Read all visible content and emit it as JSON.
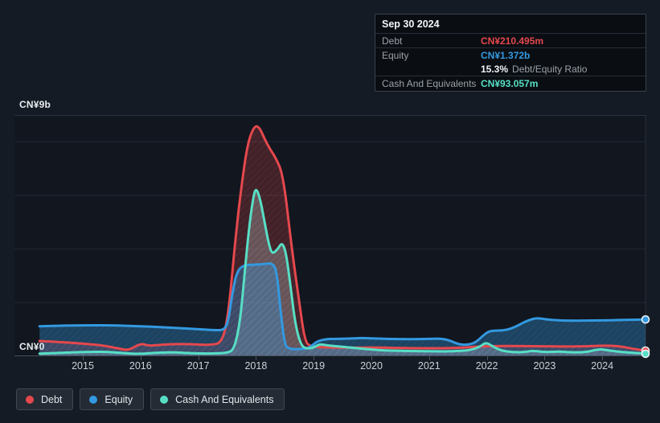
{
  "tooltip": {
    "date": "Sep 30 2024",
    "debt_label": "Debt",
    "debt_value": "CN¥210.495m",
    "equity_label": "Equity",
    "equity_value": "CN¥1.372b",
    "ratio_value": "15.3%",
    "ratio_label": "Debt/Equity Ratio",
    "cash_label": "Cash And Equivalents",
    "cash_value": "CN¥93.057m"
  },
  "axis": {
    "y_top_label": "CN¥9b",
    "y_bottom_label": "CN¥0"
  },
  "legend": {
    "items": [
      {
        "label": "Debt",
        "color": "#e5484d"
      },
      {
        "label": "Equity",
        "color": "#3399e0"
      },
      {
        "label": "Cash And Equivalents",
        "color": "#57dfc5"
      }
    ]
  },
  "colors": {
    "debt": "#e5484d",
    "equity": "#3399e0",
    "cash": "#57dfc5",
    "page_bg": "#151b24",
    "plot_bg": "#11161f",
    "gridline": "#202836",
    "plot_top_border": "#2a3240",
    "baseline": "#46505b",
    "marker_stroke": "#edf0f2"
  },
  "chart_data": {
    "type": "area",
    "unit": "CN¥ billions",
    "ylim": [
      0,
      9
    ],
    "x_start": 2014.25,
    "x_end": 2024.75,
    "x_ticks": [
      2015,
      2016,
      2017,
      2018,
      2019,
      2020,
      2021,
      2022,
      2023,
      2024
    ],
    "gridline_values": [
      2,
      4,
      6,
      8
    ],
    "grid": true,
    "legend_position": "bottom-left",
    "stroke_order": [
      0,
      2,
      1
    ],
    "series": [
      {
        "name": "Debt",
        "color": "#e5484d",
        "fill": "rgba(229,72,77,0.24)",
        "points": [
          [
            2014.25,
            0.57
          ],
          [
            2014.6,
            0.53
          ],
          [
            2015.0,
            0.47
          ],
          [
            2015.3,
            0.42
          ],
          [
            2015.6,
            0.3
          ],
          [
            2015.8,
            0.21
          ],
          [
            2016.0,
            0.49
          ],
          [
            2016.15,
            0.38
          ],
          [
            2016.4,
            0.44
          ],
          [
            2016.7,
            0.46
          ],
          [
            2017.0,
            0.44
          ],
          [
            2017.2,
            0.42
          ],
          [
            2017.42,
            0.5
          ],
          [
            2017.53,
            1.7
          ],
          [
            2017.64,
            4.3
          ],
          [
            2017.74,
            6.2
          ],
          [
            2017.85,
            7.9
          ],
          [
            2017.97,
            8.6
          ],
          [
            2018.06,
            8.55
          ],
          [
            2018.15,
            8.1
          ],
          [
            2018.25,
            7.7
          ],
          [
            2018.33,
            7.45
          ],
          [
            2018.47,
            6.8
          ],
          [
            2018.61,
            4.2
          ],
          [
            2018.75,
            2.0
          ],
          [
            2018.85,
            0.54
          ],
          [
            2018.95,
            0.36
          ],
          [
            2019.2,
            0.33
          ],
          [
            2019.6,
            0.32
          ],
          [
            2020.0,
            0.33
          ],
          [
            2020.4,
            0.31
          ],
          [
            2020.8,
            0.3
          ],
          [
            2021.2,
            0.3
          ],
          [
            2021.6,
            0.32
          ],
          [
            2021.9,
            0.37
          ],
          [
            2022.2,
            0.38
          ],
          [
            2022.6,
            0.38
          ],
          [
            2023.0,
            0.37
          ],
          [
            2023.4,
            0.36
          ],
          [
            2023.7,
            0.37
          ],
          [
            2024.0,
            0.4
          ],
          [
            2024.3,
            0.38
          ],
          [
            2024.55,
            0.27
          ],
          [
            2024.75,
            0.21
          ]
        ]
      },
      {
        "name": "Cash And Equivalents",
        "color": "#57dfc5",
        "fill": "rgba(186,201,203,0.30)",
        "points": [
          [
            2014.25,
            0.1
          ],
          [
            2014.6,
            0.13
          ],
          [
            2015.0,
            0.16
          ],
          [
            2015.4,
            0.17
          ],
          [
            2015.7,
            0.12
          ],
          [
            2016.0,
            0.08
          ],
          [
            2016.3,
            0.14
          ],
          [
            2016.6,
            0.15
          ],
          [
            2016.9,
            0.11
          ],
          [
            2017.2,
            0.1
          ],
          [
            2017.5,
            0.12
          ],
          [
            2017.62,
            0.25
          ],
          [
            2017.72,
            1.2
          ],
          [
            2017.8,
            3.0
          ],
          [
            2017.88,
            4.8
          ],
          [
            2017.95,
            5.9
          ],
          [
            2018.0,
            6.3
          ],
          [
            2018.07,
            5.9
          ],
          [
            2018.15,
            5.0
          ],
          [
            2018.22,
            4.2
          ],
          [
            2018.28,
            3.8
          ],
          [
            2018.38,
            4.0
          ],
          [
            2018.45,
            4.25
          ],
          [
            2018.52,
            3.9
          ],
          [
            2018.6,
            2.6
          ],
          [
            2018.68,
            1.2
          ],
          [
            2018.78,
            0.4
          ],
          [
            2018.88,
            0.28
          ],
          [
            2019.0,
            0.32
          ],
          [
            2019.1,
            0.46
          ],
          [
            2019.25,
            0.4
          ],
          [
            2019.45,
            0.36
          ],
          [
            2019.7,
            0.31
          ],
          [
            2019.95,
            0.26
          ],
          [
            2020.2,
            0.22
          ],
          [
            2020.5,
            0.2
          ],
          [
            2020.8,
            0.19
          ],
          [
            2021.1,
            0.18
          ],
          [
            2021.4,
            0.18
          ],
          [
            2021.7,
            0.22
          ],
          [
            2021.88,
            0.35
          ],
          [
            2021.98,
            0.52
          ],
          [
            2022.08,
            0.4
          ],
          [
            2022.2,
            0.25
          ],
          [
            2022.35,
            0.17
          ],
          [
            2022.6,
            0.14
          ],
          [
            2022.8,
            0.21
          ],
          [
            2023.0,
            0.15
          ],
          [
            2023.25,
            0.18
          ],
          [
            2023.5,
            0.14
          ],
          [
            2023.75,
            0.16
          ],
          [
            2023.95,
            0.28
          ],
          [
            2024.15,
            0.2
          ],
          [
            2024.4,
            0.15
          ],
          [
            2024.6,
            0.12
          ],
          [
            2024.75,
            0.093
          ]
        ]
      },
      {
        "name": "Equity",
        "color": "#3399e0",
        "fill": "rgba(50,148,216,0.36)",
        "points": [
          [
            2014.25,
            1.12
          ],
          [
            2014.6,
            1.14
          ],
          [
            2015.0,
            1.15
          ],
          [
            2015.4,
            1.16
          ],
          [
            2015.8,
            1.13
          ],
          [
            2016.2,
            1.1
          ],
          [
            2016.6,
            1.06
          ],
          [
            2017.0,
            1.01
          ],
          [
            2017.3,
            0.97
          ],
          [
            2017.45,
            0.98
          ],
          [
            2017.52,
            1.3
          ],
          [
            2017.58,
            2.2
          ],
          [
            2017.65,
            3.0
          ],
          [
            2017.72,
            3.3
          ],
          [
            2017.82,
            3.4
          ],
          [
            2018.0,
            3.42
          ],
          [
            2018.15,
            3.44
          ],
          [
            2018.28,
            3.48
          ],
          [
            2018.36,
            3.2
          ],
          [
            2018.43,
            1.6
          ],
          [
            2018.5,
            0.4
          ],
          [
            2018.58,
            0.28
          ],
          [
            2018.7,
            0.26
          ],
          [
            2018.85,
            0.28
          ],
          [
            2018.95,
            0.35
          ],
          [
            2019.05,
            0.55
          ],
          [
            2019.2,
            0.64
          ],
          [
            2019.4,
            0.65
          ],
          [
            2019.6,
            0.66
          ],
          [
            2019.8,
            0.68
          ],
          [
            2020.0,
            0.67
          ],
          [
            2020.2,
            0.65
          ],
          [
            2020.5,
            0.64
          ],
          [
            2020.8,
            0.64
          ],
          [
            2021.0,
            0.65
          ],
          [
            2021.2,
            0.66
          ],
          [
            2021.35,
            0.6
          ],
          [
            2021.5,
            0.45
          ],
          [
            2021.65,
            0.42
          ],
          [
            2021.8,
            0.5
          ],
          [
            2021.95,
            0.8
          ],
          [
            2022.05,
            0.95
          ],
          [
            2022.2,
            0.96
          ],
          [
            2022.35,
            0.98
          ],
          [
            2022.5,
            1.1
          ],
          [
            2022.65,
            1.28
          ],
          [
            2022.8,
            1.4
          ],
          [
            2022.9,
            1.42
          ],
          [
            2023.05,
            1.37
          ],
          [
            2023.2,
            1.34
          ],
          [
            2023.4,
            1.33
          ],
          [
            2023.7,
            1.33
          ],
          [
            2024.0,
            1.34
          ],
          [
            2024.3,
            1.35
          ],
          [
            2024.5,
            1.36
          ],
          [
            2024.75,
            1.372
          ]
        ]
      }
    ]
  }
}
